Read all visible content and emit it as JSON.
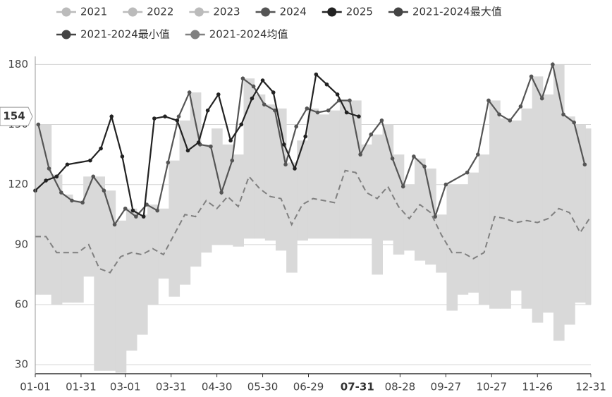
{
  "chart_data": {
    "type": "line",
    "inactive_legend": [
      "2021",
      "2022",
      "2023"
    ],
    "inactive_color": "#bbbbbb",
    "band_color": "#d9d9d9",
    "grid": true,
    "xlim": [
      0,
      364
    ],
    "ylim": [
      25.5,
      184
    ],
    "yticks": [
      30,
      60,
      90,
      120,
      150,
      180
    ],
    "xticks": [
      {
        "value": 0,
        "label": "01-01"
      },
      {
        "value": 30,
        "label": "01-31"
      },
      {
        "value": 59,
        "label": "03-01"
      },
      {
        "value": 89,
        "label": "03-31"
      },
      {
        "value": 119,
        "label": "04-30"
      },
      {
        "value": 149,
        "label": "05-30"
      },
      {
        "value": 179,
        "label": "06-29"
      },
      {
        "value": 239,
        "label": "08-28"
      },
      {
        "value": 269,
        "label": "09-27"
      },
      {
        "value": 299,
        "label": "10-27"
      },
      {
        "value": 329,
        "label": "11-26"
      },
      {
        "value": 364,
        "label": "12-31"
      }
    ],
    "axis_pointer": {
      "value": 154,
      "x": 211,
      "x_label": "07-31"
    },
    "x": [
      0,
      7,
      14,
      21,
      28,
      35,
      42,
      49,
      56,
      63,
      70,
      77,
      84,
      91,
      98,
      105,
      112,
      119,
      126,
      133,
      140,
      147,
      154,
      161,
      168,
      175,
      182,
      189,
      196,
      203,
      210,
      217,
      224,
      231,
      238,
      245,
      252,
      259,
      266,
      273,
      280,
      287,
      294,
      301,
      308,
      315,
      322,
      329,
      336,
      343,
      350,
      357,
      364
    ],
    "series": [
      {
        "name": "2024",
        "color": "#555555",
        "style": "line",
        "x": [
          2,
          9,
          17,
          24,
          31,
          38,
          45,
          52,
          59,
          66,
          73,
          80,
          87,
          94,
          101,
          108,
          115,
          122,
          129,
          136,
          143,
          150,
          157,
          164,
          171,
          178,
          185,
          192,
          199,
          206,
          213,
          220,
          227,
          234,
          241,
          248,
          255,
          262,
          269,
          283,
          290,
          297,
          304,
          311,
          318,
          325,
          332,
          339,
          346,
          353,
          360
        ],
        "values": [
          150,
          128,
          116,
          112,
          111,
          124,
          117,
          100,
          108,
          104,
          110,
          107,
          131,
          154,
          166,
          140,
          139,
          116,
          132,
          173,
          169,
          160,
          157,
          130,
          149,
          158,
          156,
          157,
          162,
          162,
          135,
          145,
          152,
          133,
          119,
          134,
          129,
          104,
          120,
          126,
          135,
          162,
          155,
          152,
          159,
          174,
          163,
          180,
          155,
          151,
          130
        ]
      },
      {
        "name": "2025",
        "color": "#222222",
        "style": "line",
        "x": [
          0,
          7,
          14,
          21,
          36,
          43,
          50,
          57,
          64,
          71,
          78,
          85,
          93,
          100,
          107,
          113,
          120,
          128,
          135,
          142,
          149,
          156,
          163,
          170,
          177,
          184,
          191,
          198,
          204,
          212
        ],
        "values": [
          117,
          122,
          124,
          130,
          132,
          138,
          154,
          134,
          107,
          104,
          153,
          154,
          152,
          137,
          141,
          157,
          165,
          142,
          150,
          163,
          172,
          166,
          140,
          128,
          144,
          175,
          170,
          165,
          156,
          154
        ]
      },
      {
        "name": "2021-2024最大值",
        "color": "#444444",
        "style": "band-upper",
        "values": [
          150,
          150,
          125,
          115,
          112,
          124,
          124,
          117,
          102,
          108,
          105,
          110,
          108,
          132,
          152,
          166,
          140,
          148,
          140,
          135,
          173,
          165,
          160,
          158,
          131,
          142,
          158,
          155,
          157,
          162,
          162,
          140,
          145,
          150,
          135,
          120,
          133,
          128,
          105,
          120,
          120,
          126,
          135,
          162,
          153,
          152,
          158,
          174,
          165,
          180,
          154,
          150,
          148
        ]
      },
      {
        "name": "2021-2024最小值",
        "color": "#444444",
        "style": "band-lower",
        "values": [
          65,
          65,
          60,
          61,
          61,
          74,
          27,
          27,
          26,
          37,
          45,
          60,
          73,
          64,
          70,
          79,
          86,
          90,
          90,
          89,
          93,
          93,
          92,
          87,
          76,
          92,
          93,
          93,
          93,
          93,
          93,
          93,
          75,
          92,
          85,
          87,
          82,
          80,
          76,
          57,
          65,
          66,
          60,
          58,
          58,
          67,
          58,
          51,
          56,
          42,
          50,
          61,
          60
        ]
      },
      {
        "name": "2021-2024均值",
        "color": "#808080",
        "style": "dashed",
        "values": [
          94,
          94,
          86,
          86,
          86,
          90,
          78,
          76,
          84,
          86,
          85,
          88,
          85,
          95,
          105,
          104,
          112,
          108,
          114,
          109,
          124,
          118,
          114,
          113,
          100,
          110,
          113,
          112,
          111,
          127,
          126,
          116,
          113,
          119,
          109,
          103,
          110,
          106,
          95,
          86,
          86,
          83,
          86,
          104,
          103,
          101,
          102,
          101,
          103,
          108,
          106,
          96,
          104
        ]
      }
    ]
  }
}
